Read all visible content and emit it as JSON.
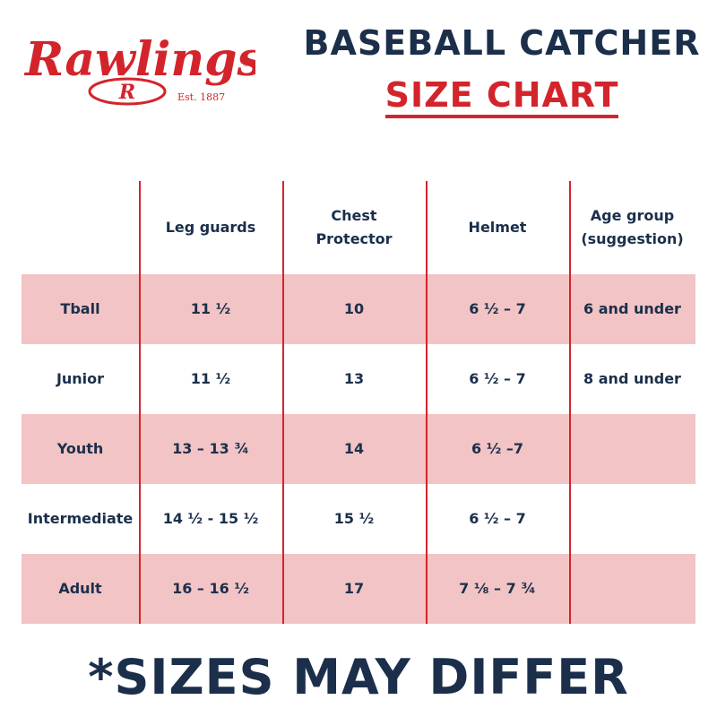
{
  "logo": {
    "brand": "Rawlings",
    "monogram": "R",
    "est": "Est. 1887",
    "color": "#d3242c"
  },
  "title": {
    "line1": "BASEBALL CATCHER",
    "line2": "SIZE CHART"
  },
  "table": {
    "headers": [
      "",
      "Leg guards",
      "Chest\nProtector",
      "Helmet",
      "Age group\n(suggestion)"
    ],
    "rows": [
      {
        "label": "Tball",
        "leg": "11 ½",
        "chest": "10",
        "helmet": "6 ½ – 7",
        "age": "6 and under",
        "shaded": true
      },
      {
        "label": "Junior",
        "leg": "11 ½",
        "chest": "13",
        "helmet": "6 ½ – 7",
        "age": "8 and under",
        "shaded": false
      },
      {
        "label": "Youth",
        "leg": "13 – 13 ¾",
        "chest": "14",
        "helmet": "6 ½ –7",
        "age": "",
        "shaded": true
      },
      {
        "label": "Intermediate",
        "leg": "14 ½  - 15 ½",
        "chest": "15 ½",
        "helmet": "6 ½ – 7",
        "age": "",
        "shaded": false
      },
      {
        "label": "Adult",
        "leg": "16 – 16 ½",
        "chest": "17",
        "helmet": "7 ⅛ – 7 ¾",
        "age": "",
        "shaded": true
      }
    ]
  },
  "footer": "*SIZES MAY DIFFER",
  "colors": {
    "navy": "#1b2f4b",
    "red": "#d3242c",
    "row_shade": "#f2c4c5"
  }
}
